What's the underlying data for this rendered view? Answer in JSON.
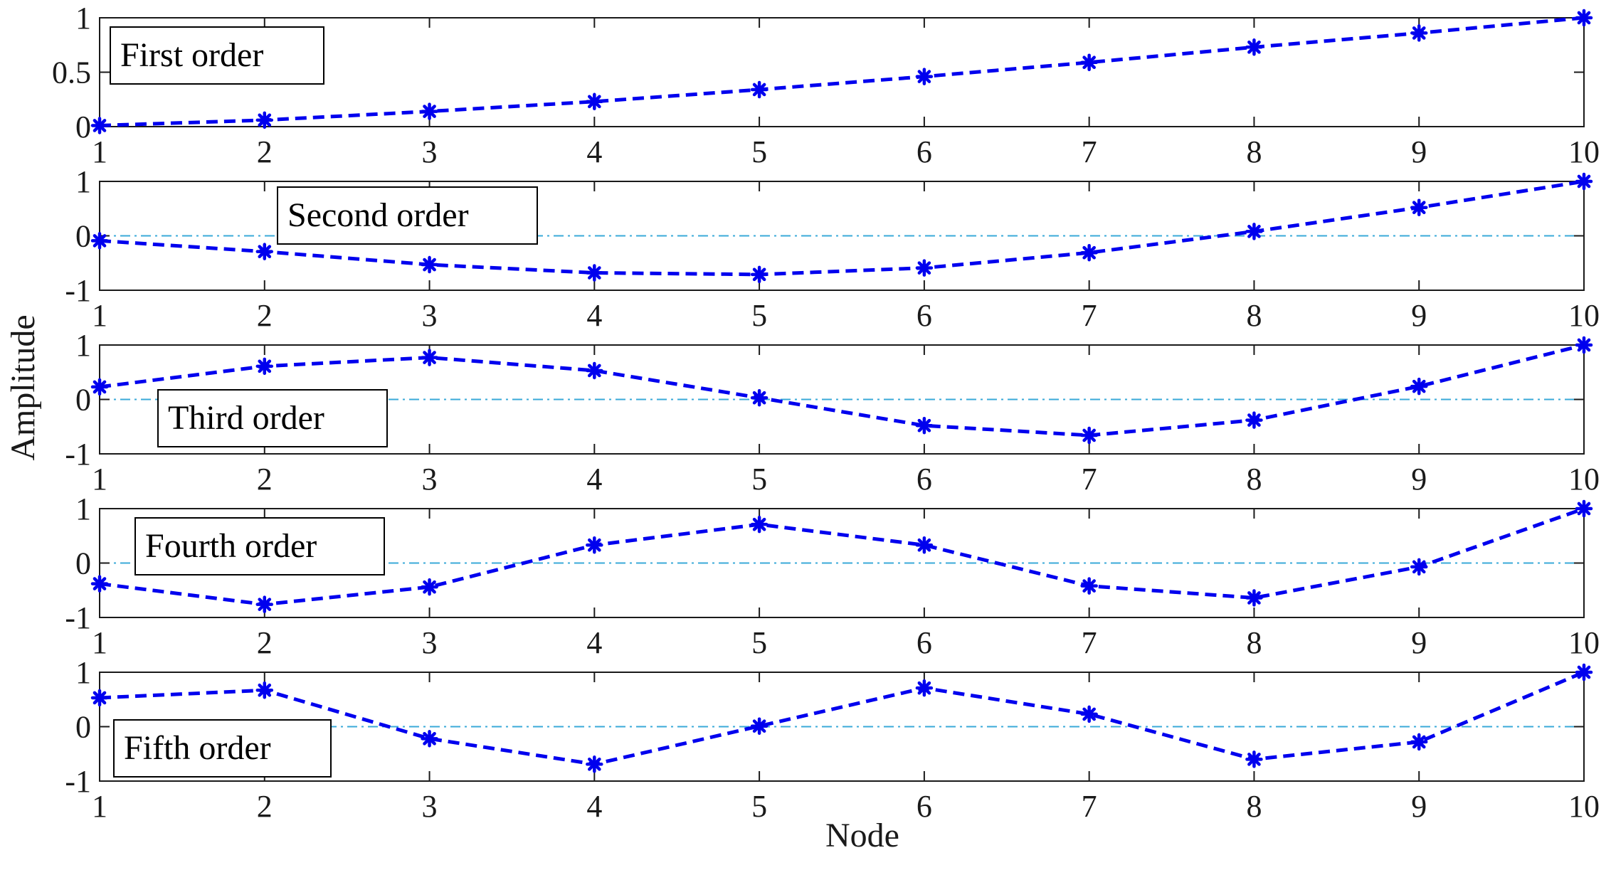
{
  "chart_data": [
    {
      "type": "line",
      "legend": "First order",
      "x": [
        1,
        2,
        3,
        4,
        5,
        6,
        7,
        8,
        9,
        10
      ],
      "values": [
        0.01,
        0.06,
        0.14,
        0.23,
        0.34,
        0.46,
        0.59,
        0.73,
        0.86,
        1.0
      ],
      "xlim": [
        1,
        10
      ],
      "ylim": [
        0,
        1
      ],
      "yticks": [
        0,
        0.5,
        1
      ],
      "ytick_labels": [
        "0",
        "0.5",
        "1"
      ],
      "xtick_labels": [
        "1",
        "2",
        "3",
        "4",
        "5",
        "6",
        "7",
        "8",
        "9",
        "10"
      ]
    },
    {
      "type": "line",
      "legend": "Second order",
      "x": [
        1,
        2,
        3,
        4,
        5,
        6,
        7,
        8,
        9,
        10
      ],
      "values": [
        -0.09,
        -0.29,
        -0.53,
        -0.68,
        -0.71,
        -0.59,
        -0.31,
        0.08,
        0.52,
        1.0
      ],
      "xlim": [
        1,
        10
      ],
      "ylim": [
        -1,
        1
      ],
      "yticks": [
        -1,
        0,
        1
      ],
      "ytick_labels": [
        "-1",
        "0",
        "1"
      ],
      "xtick_labels": [
        "1",
        "2",
        "3",
        "4",
        "5",
        "6",
        "7",
        "8",
        "9",
        "10"
      ]
    },
    {
      "type": "line",
      "legend": "Third order",
      "x": [
        1,
        2,
        3,
        4,
        5,
        6,
        7,
        8,
        9,
        10
      ],
      "values": [
        0.23,
        0.61,
        0.77,
        0.53,
        0.03,
        -0.48,
        -0.66,
        -0.38,
        0.24,
        1.0
      ],
      "xlim": [
        1,
        10
      ],
      "ylim": [
        -1,
        1
      ],
      "yticks": [
        -1,
        0,
        1
      ],
      "ytick_labels": [
        "-1",
        "0",
        "1"
      ],
      "xtick_labels": [
        "1",
        "2",
        "3",
        "4",
        "5",
        "6",
        "7",
        "8",
        "9",
        "10"
      ]
    },
    {
      "type": "line",
      "legend": "Fourth order",
      "x": [
        1,
        2,
        3,
        4,
        5,
        6,
        7,
        8,
        9,
        10
      ],
      "values": [
        -0.38,
        -0.76,
        -0.44,
        0.33,
        0.71,
        0.33,
        -0.42,
        -0.64,
        -0.07,
        1.0
      ],
      "xlim": [
        1,
        10
      ],
      "ylim": [
        -1,
        1
      ],
      "yticks": [
        -1,
        0,
        1
      ],
      "ytick_labels": [
        "-1",
        "0",
        "1"
      ],
      "xtick_labels": [
        "1",
        "2",
        "3",
        "4",
        "5",
        "6",
        "7",
        "8",
        "9",
        "10"
      ]
    },
    {
      "type": "line",
      "legend": "Fifth order",
      "x": [
        1,
        2,
        3,
        4,
        5,
        6,
        7,
        8,
        9,
        10
      ],
      "values": [
        0.53,
        0.67,
        -0.22,
        -0.69,
        0.01,
        0.71,
        0.23,
        -0.6,
        -0.28,
        1.0
      ],
      "xlim": [
        1,
        10
      ],
      "ylim": [
        -1,
        1
      ],
      "yticks": [
        -1,
        0,
        1
      ],
      "ytick_labels": [
        "-1",
        "0",
        "1"
      ],
      "xtick_labels": [
        "1",
        "2",
        "3",
        "4",
        "5",
        "6",
        "7",
        "8",
        "9",
        "10"
      ]
    }
  ],
  "xlabel": "Node",
  "ylabel": "Amplitude",
  "colors": {
    "series": "#0000ee",
    "zero_line": "#3aaad8",
    "axis": "#1a1a1a"
  },
  "marker": "asterisk",
  "line_style": "dashed"
}
